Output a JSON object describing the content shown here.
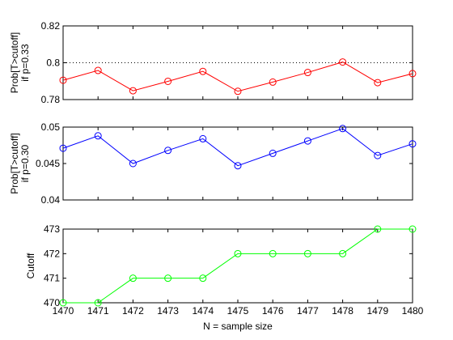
{
  "chart_data": [
    {
      "type": "line",
      "x": [
        1470,
        1471,
        1472,
        1473,
        1474,
        1475,
        1476,
        1477,
        1478,
        1479,
        1480
      ],
      "series": [
        {
          "values": [
            0.7905,
            0.7958,
            0.7848,
            0.7899,
            0.7953,
            0.7845,
            0.7895,
            0.7947,
            0.8004,
            0.7892,
            0.7941
          ],
          "color": "#ff0000",
          "marker": "circle"
        }
      ],
      "reference_line": {
        "y": 0.8,
        "style": "dotted",
        "color": "#000000"
      },
      "ylim": [
        0.78,
        0.82
      ],
      "xlim": [
        1470,
        1480
      ],
      "yticks": [
        "0.78",
        "0.8",
        "0.82"
      ],
      "ylabel_line1": "Prob[T>cutoff]",
      "ylabel_line2": "if p=0.33",
      "xticks_shown": false
    },
    {
      "type": "line",
      "x": [
        1470,
        1471,
        1472,
        1473,
        1474,
        1475,
        1476,
        1477,
        1478,
        1479,
        1480
      ],
      "series": [
        {
          "values": [
            0.0471,
            0.0488,
            0.045,
            0.0468,
            0.0484,
            0.0447,
            0.0464,
            0.0481,
            0.0498,
            0.0461,
            0.0477
          ],
          "color": "#0000ff",
          "marker": "circle"
        }
      ],
      "ylim": [
        0.04,
        0.05
      ],
      "xlim": [
        1470,
        1480
      ],
      "yticks": [
        "0.04",
        "0.045",
        "0.05"
      ],
      "ylabel_line1": "Prob[T>cutoff]",
      "ylabel_line2": "if p=0.30",
      "xticks_shown": false
    },
    {
      "type": "line",
      "x": [
        1470,
        1471,
        1472,
        1473,
        1474,
        1475,
        1476,
        1477,
        1478,
        1479,
        1480
      ],
      "series": [
        {
          "values": [
            470,
            470,
            471,
            471,
            471,
            472,
            472,
            472,
            472,
            473,
            473
          ],
          "color": "#00ff00",
          "marker": "circle"
        }
      ],
      "ylim": [
        470,
        473
      ],
      "xlim": [
        1470,
        1480
      ],
      "yticks": [
        "470",
        "471",
        "472",
        "473"
      ],
      "ylabel_line1": "Cutoff",
      "ylabel_line2": "",
      "xticks_shown": true,
      "xticks": [
        "1470",
        "1471",
        "1472",
        "1473",
        "1474",
        "1475",
        "1476",
        "1477",
        "1478",
        "1479",
        "1480"
      ],
      "xlabel": "N = sample size"
    }
  ]
}
